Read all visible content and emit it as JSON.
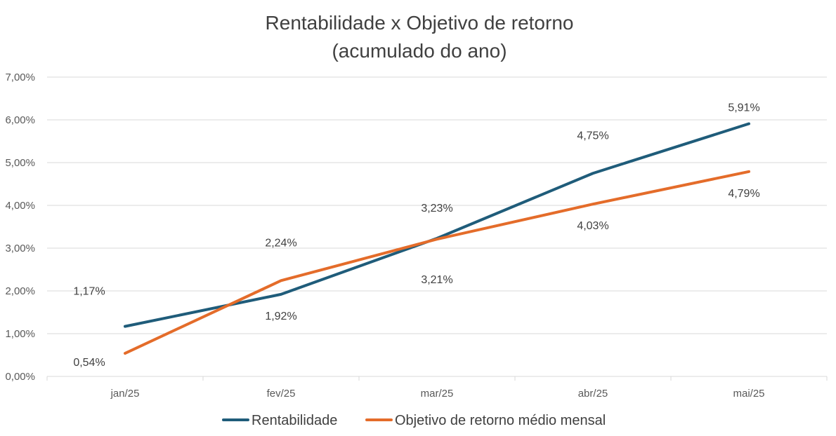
{
  "chart_data": {
    "type": "line",
    "title": "Rentabilidade x Objetivo de retorno",
    "subtitle": "(acumulado do ano)",
    "categories": [
      "jan/25",
      "fev/25",
      "mar/25",
      "abr/25",
      "mai/25"
    ],
    "y_ticks": [
      "0,00%",
      "1,00%",
      "2,00%",
      "3,00%",
      "4,00%",
      "5,00%",
      "6,00%",
      "7,00%"
    ],
    "ylim": [
      0,
      7
    ],
    "grid": true,
    "legend_position": "bottom",
    "series": [
      {
        "name": "Rentabilidade",
        "color": "#1f5c7a",
        "values": [
          1.17,
          1.92,
          3.23,
          4.75,
          5.91
        ],
        "labels": [
          "1,17%",
          "1,92%",
          "3,23%",
          "4,75%",
          "5,91%"
        ]
      },
      {
        "name": "Objetivo de retorno médio mensal",
        "color": "#e46c2a",
        "values": [
          0.54,
          2.24,
          3.21,
          4.03,
          4.79
        ],
        "labels": [
          "0,54%",
          "2,24%",
          "3,21%",
          "4,03%",
          "4,79%"
        ]
      }
    ]
  }
}
